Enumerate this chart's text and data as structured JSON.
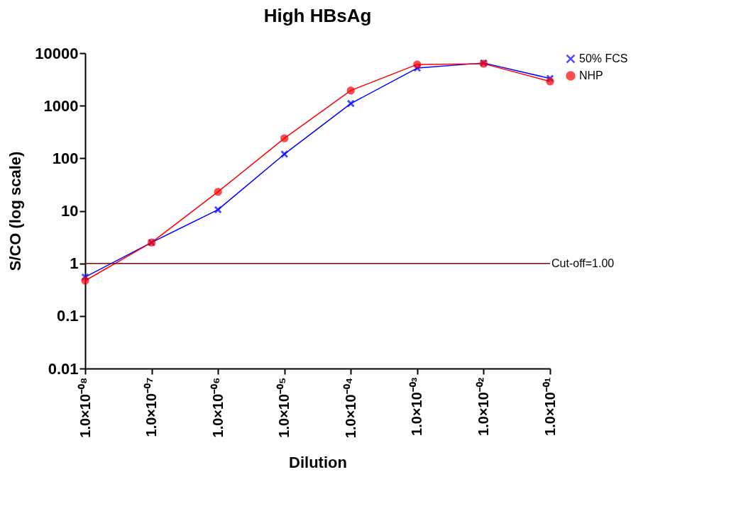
{
  "chart_data": {
    "type": "line",
    "title": "High HBsAg",
    "xlabel": "Dilution",
    "ylabel": "S/CO (log scale)",
    "categories": [
      "1.0×10⁻⁰⁸",
      "1.0×10⁻⁰⁷",
      "1.0×10⁻⁰⁶",
      "1.0×10⁻⁰⁵",
      "1.0×10⁻⁰⁴",
      "1.0×10⁻⁰³",
      "1.0×10⁻⁰²",
      "1.0×10⁻⁰¹"
    ],
    "series": [
      {
        "name": "50% FCS",
        "color": "#0000ff",
        "marker": "cross",
        "values": [
          0.55,
          2.5,
          10.5,
          120,
          1100,
          5200,
          6500,
          3300
        ]
      },
      {
        "name": "NHP",
        "color": "#ff0000",
        "marker": "circle",
        "values": [
          0.47,
          2.5,
          23,
          240,
          1950,
          6100,
          6300,
          2900
        ]
      }
    ],
    "log": "y",
    "ylim": [
      0.01,
      10000
    ],
    "yticks": [
      0.01,
      0.1,
      1,
      10,
      100,
      1000,
      10000
    ],
    "ref_lines": [
      {
        "axis": "y",
        "value": 1,
        "label": "Cut-off=1.00",
        "color": "#8b0000"
      }
    ],
    "legend": "right",
    "grid": false
  }
}
